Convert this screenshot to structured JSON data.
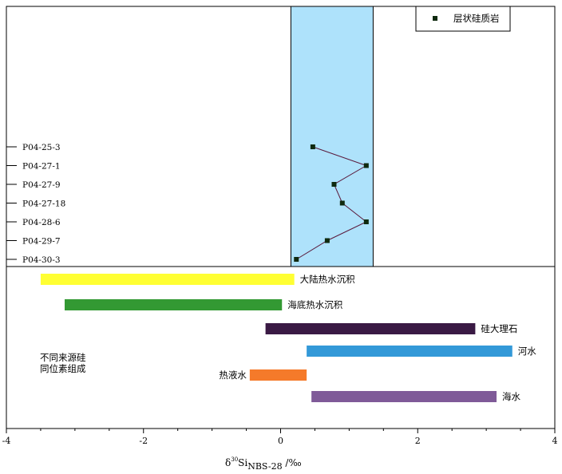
{
  "colors": {
    "band": "#aee2fb",
    "line": "#5a1a3c",
    "marker": "#0f2a0f",
    "axis": "#000000"
  },
  "chart_data": {
    "type": "scatter",
    "xlim": [
      -4,
      4
    ],
    "xticks": [
      "-4",
      "-2",
      "0",
      "2",
      "4"
    ],
    "xlabel": {
      "main": "δ",
      "sup": "30",
      "element": "Si",
      "sub": "NBS-28",
      "unit": " /‰"
    },
    "legend": {
      "label": "层状硅质岩",
      "position": "top-right"
    },
    "band": {
      "x_range": [
        0.15,
        1.35
      ]
    },
    "samples": [
      {
        "name": "P04-25-3",
        "x": 0.47
      },
      {
        "name": "P04-27-1",
        "x": 1.25
      },
      {
        "name": "P04-27-9",
        "x": 0.78
      },
      {
        "name": "P04-27-18",
        "x": 0.9
      },
      {
        "name": "P04-28-6",
        "x": 1.25
      },
      {
        "name": "P04-29-7",
        "x": 0.68
      },
      {
        "name": "P04-30-3",
        "x": 0.23
      }
    ],
    "group_label": [
      "不同来源硅",
      "同位素组成"
    ],
    "ranges": [
      {
        "name": "大陆热水沉积",
        "x_range": [
          -3.5,
          0.2
        ],
        "color": "#ffff33",
        "label_side": "right"
      },
      {
        "name": "海底热水沉积",
        "x_range": [
          -3.15,
          0.02
        ],
        "color": "#339933",
        "label_side": "right"
      },
      {
        "name": "硅大理石",
        "x_range": [
          -0.22,
          2.84
        ],
        "color": "#3a1a44",
        "label_side": "right"
      },
      {
        "name": "河水",
        "x_range": [
          0.38,
          3.38
        ],
        "color": "#3399d8",
        "label_side": "right"
      },
      {
        "name": "热液水",
        "x_range": [
          -0.45,
          0.38
        ],
        "color": "#f57a2a",
        "label_side": "left"
      },
      {
        "name": "海水",
        "x_range": [
          0.45,
          3.15
        ],
        "color": "#7f5a98",
        "label_side": "right"
      }
    ]
  }
}
